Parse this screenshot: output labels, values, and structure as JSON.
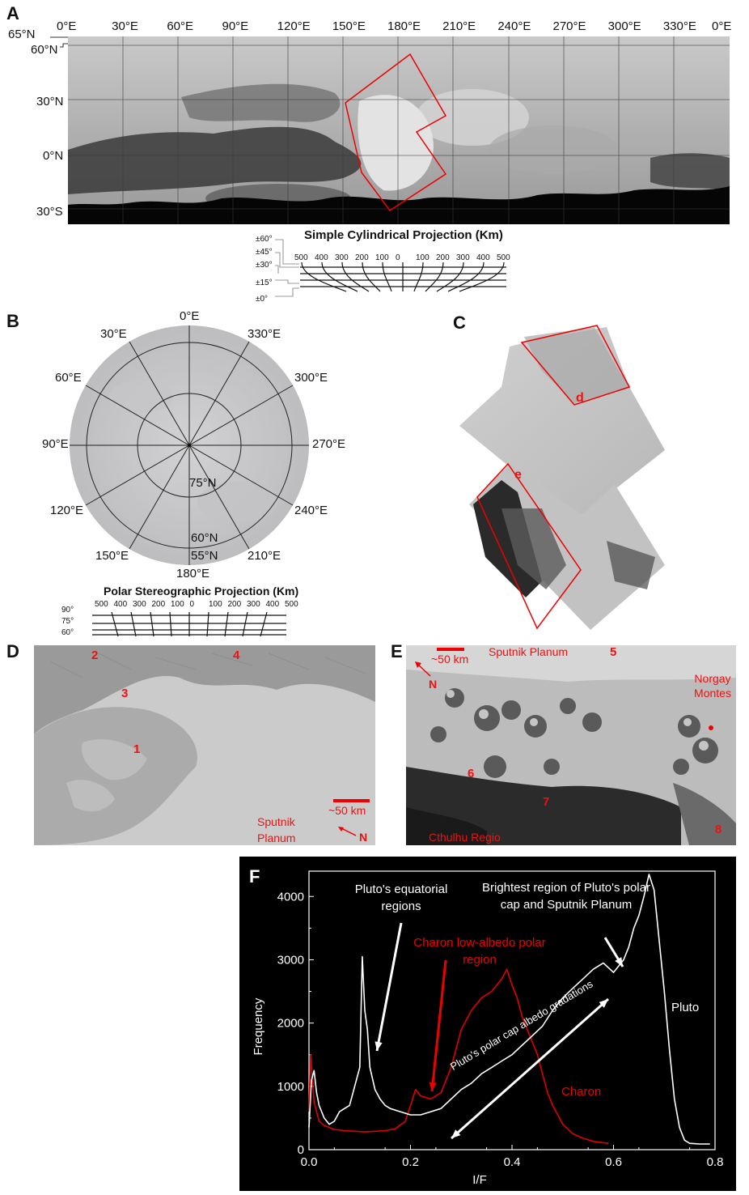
{
  "panels": {
    "a": {
      "letter": "A",
      "lon_labels": [
        "0°E",
        "30°E",
        "60°E",
        "90°E",
        "120°E",
        "150°E",
        "180°E",
        "210°E",
        "240°E",
        "270°E",
        "300°E",
        "330°E",
        "0°E"
      ],
      "lat_labels": [
        "65°N",
        "60°N",
        "30°N",
        "0°N",
        "30°S"
      ],
      "scale_title": "Simple Cylindrical Projection (Km)",
      "scale_ticks": [
        "500",
        "400",
        "300",
        "200",
        "100",
        "0",
        "100",
        "200",
        "300",
        "400",
        "500"
      ],
      "scale_lats": [
        "±60°",
        "±45°",
        "±30°",
        "±15°",
        "±0°"
      ]
    },
    "b": {
      "letter": "B",
      "lon_labels": [
        "0°E",
        "330°E",
        "300°E",
        "270°E",
        "240°E",
        "210°E",
        "180°E",
        "150°E",
        "120°E",
        "90°E",
        "60°E",
        "30°E"
      ],
      "lat_labels": [
        "75°N",
        "60°N",
        "55°N"
      ],
      "scale_title": "Polar Stereographic Projection (Km)",
      "scale_ticks": [
        "500",
        "400",
        "300",
        "200",
        "100",
        "0",
        "100",
        "200",
        "300",
        "400",
        "500"
      ],
      "scale_lats": [
        "90°",
        "75°",
        "60°"
      ]
    },
    "c": {
      "letter": "C",
      "box_d": "d",
      "box_e": "e"
    },
    "d": {
      "letter": "D",
      "markers": [
        "2",
        "4",
        "3",
        "1"
      ],
      "scale": "~50 km",
      "north": "N",
      "region": "Sputnik Planum"
    },
    "e": {
      "letter": "E",
      "scale": "~50 km",
      "north": "N",
      "region_top": "Sputnik Planum",
      "markers": [
        "5",
        "6",
        "7",
        "8"
      ],
      "mountains": "Norgay Montes",
      "region_bottom": "Cthulhu Regio"
    },
    "f": {
      "letter": "F",
      "annot_equatorial": "Pluto's equatorial regions",
      "annot_bright": "Brightest region of Pluto's polar cap and Sputnik Planum",
      "annot_charon": "Charon low-albedo polar region",
      "annot_gradation": "Pluto's polar cap albedo gradations",
      "label_pluto": "Pluto",
      "label_charon": "Charon"
    }
  },
  "chart_data": {
    "type": "line",
    "xlabel": "I/F",
    "ylabel": "Frequency",
    "xlim": [
      0.0,
      0.8
    ],
    "ylim": [
      0,
      4400
    ],
    "x_ticks": [
      "0.0",
      "0.2",
      "0.4",
      "0.6",
      "0.8"
    ],
    "y_ticks": [
      "0",
      "1000",
      "2000",
      "3000",
      "4000"
    ],
    "series": [
      {
        "name": "Pluto",
        "color": "#ffffff",
        "x": [
          0.0,
          0.005,
          0.01,
          0.015,
          0.02,
          0.03,
          0.04,
          0.05,
          0.06,
          0.07,
          0.08,
          0.09,
          0.1,
          0.105,
          0.11,
          0.115,
          0.12,
          0.13,
          0.14,
          0.15,
          0.16,
          0.18,
          0.2,
          0.22,
          0.24,
          0.26,
          0.28,
          0.3,
          0.32,
          0.34,
          0.36,
          0.38,
          0.4,
          0.42,
          0.44,
          0.46,
          0.48,
          0.5,
          0.52,
          0.54,
          0.56,
          0.58,
          0.6,
          0.62,
          0.63,
          0.64,
          0.65,
          0.66,
          0.67,
          0.68,
          0.69,
          0.7,
          0.71,
          0.72,
          0.73,
          0.74,
          0.75,
          0.77,
          0.79
        ],
        "y": [
          350,
          1100,
          1250,
          900,
          700,
          500,
          400,
          450,
          600,
          650,
          700,
          1000,
          1300,
          3050,
          2200,
          1900,
          1300,
          950,
          800,
          700,
          650,
          600,
          550,
          550,
          600,
          650,
          800,
          950,
          1050,
          1200,
          1300,
          1400,
          1500,
          1650,
          1800,
          1950,
          2200,
          2400,
          2550,
          2700,
          2850,
          2950,
          2800,
          3000,
          3200,
          3500,
          3700,
          4000,
          4350,
          4100,
          3300,
          2500,
          1600,
          800,
          350,
          150,
          100,
          90,
          90
        ]
      },
      {
        "name": "Charon",
        "color": "#e00000",
        "x": [
          0.0,
          0.003,
          0.01,
          0.02,
          0.03,
          0.05,
          0.07,
          0.09,
          0.11,
          0.13,
          0.15,
          0.17,
          0.19,
          0.2,
          0.21,
          0.22,
          0.24,
          0.26,
          0.28,
          0.3,
          0.32,
          0.34,
          0.36,
          0.38,
          0.39,
          0.4,
          0.41,
          0.42,
          0.43,
          0.44,
          0.45,
          0.46,
          0.47,
          0.48,
          0.5,
          0.52,
          0.54,
          0.56,
          0.58,
          0.59
        ],
        "y": [
          600,
          1500,
          750,
          450,
          380,
          320,
          300,
          290,
          280,
          290,
          300,
          330,
          450,
          700,
          950,
          850,
          800,
          900,
          1300,
          1900,
          2200,
          2400,
          2500,
          2700,
          2850,
          2600,
          2400,
          2100,
          1900,
          1700,
          1500,
          1200,
          900,
          700,
          400,
          250,
          180,
          130,
          110,
          100
        ]
      }
    ]
  }
}
